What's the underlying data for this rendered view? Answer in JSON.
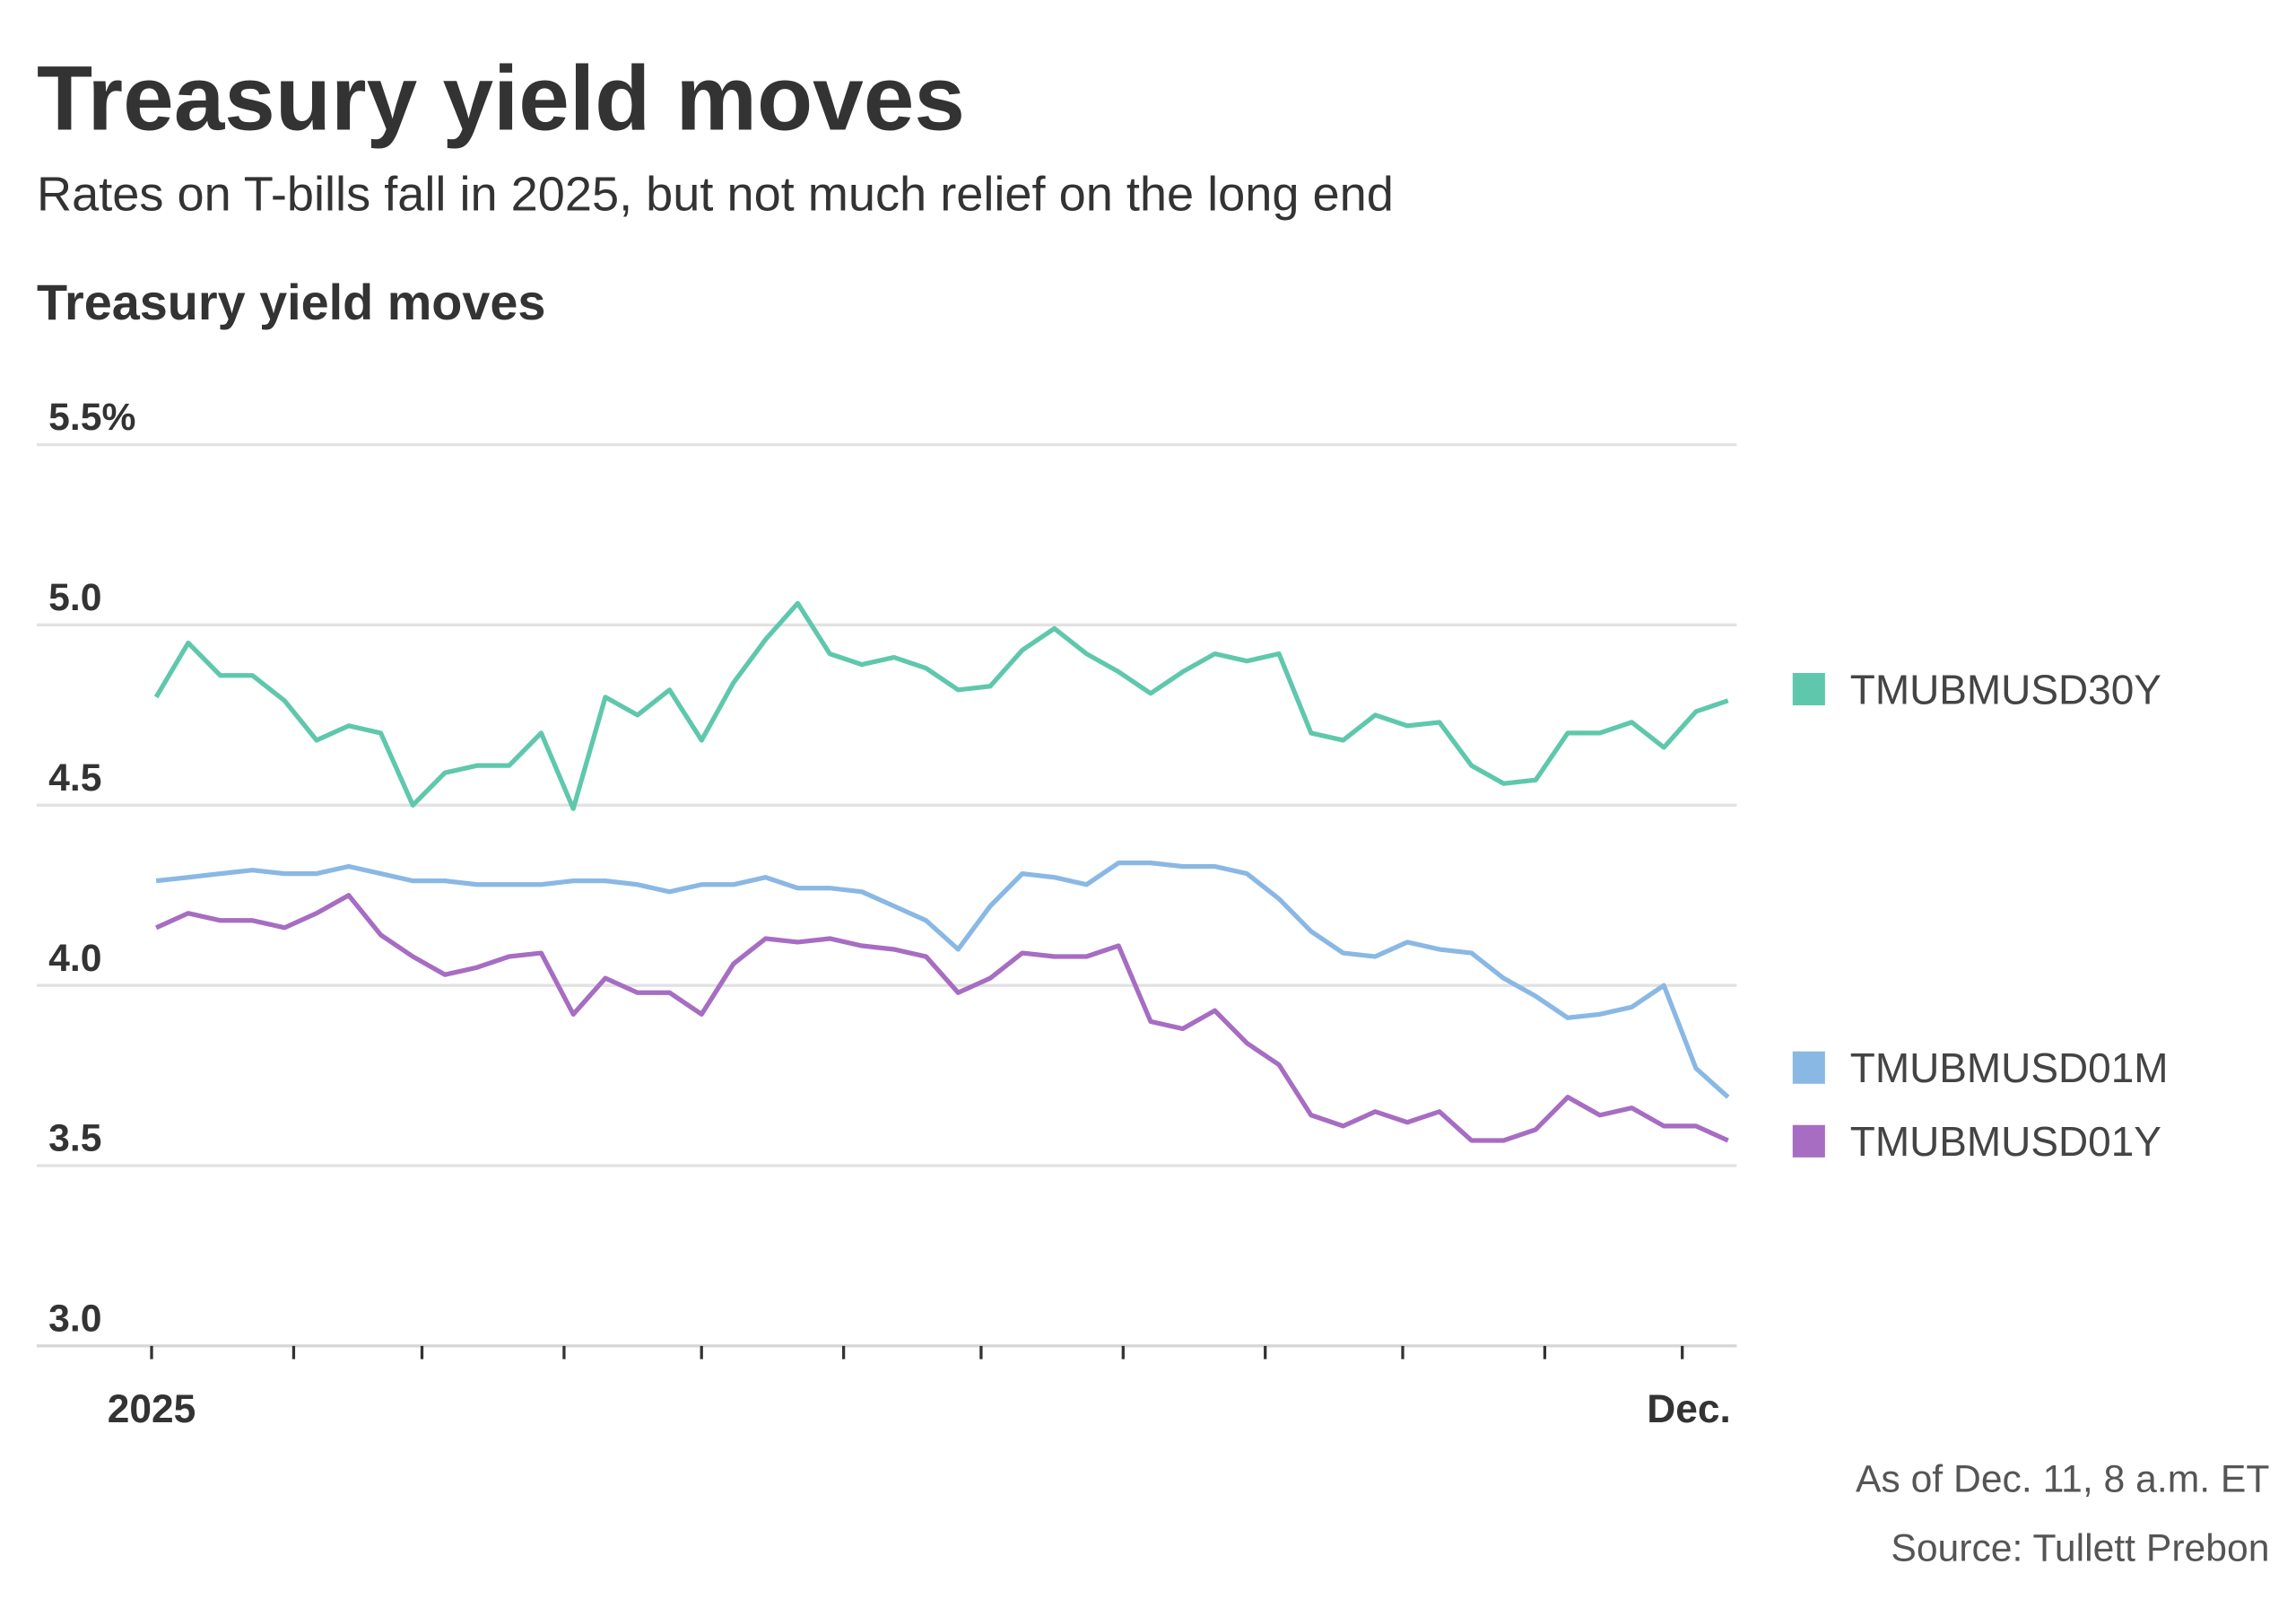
{
  "header": {
    "title": "Treasury yield moves",
    "subtitle": "Rates on T-bills fall in 2025, but not much relief on the long end"
  },
  "footer": {
    "as_of": "As of Dec. 11, 8 a.m. ET",
    "source": "Source: Tullett Prebon"
  },
  "chart_data": {
    "type": "line",
    "title": "Treasury yield moves",
    "xlabel": "",
    "ylabel": "",
    "ylim": [
      3.0,
      5.5
    ],
    "y_ticks": [
      {
        "value": 5.5,
        "label": "5.5%"
      },
      {
        "value": 5.0,
        "label": "5.0"
      },
      {
        "value": 4.5,
        "label": "4.5"
      },
      {
        "value": 4.0,
        "label": "4.0"
      },
      {
        "value": 3.5,
        "label": "3.5"
      },
      {
        "value": 3.0,
        "label": "3.0"
      }
    ],
    "x_ticks": [
      "2025-01-01",
      "2025-02-01",
      "2025-03-01",
      "2025-04-01",
      "2025-05-01",
      "2025-06-01",
      "2025-07-01",
      "2025-08-01",
      "2025-09-01",
      "2025-10-01",
      "2025-11-01",
      "2025-12-01"
    ],
    "x_tick_labels": [
      {
        "date": "2025-01-01",
        "label": "2025"
      },
      {
        "date": "2025-12-01",
        "label": "Dec."
      }
    ],
    "xlim": [
      "2024-12-07",
      "2025-12-12"
    ],
    "grid": true,
    "legend_position": "right",
    "x": [
      "2025-01-02",
      "2025-01-09",
      "2025-01-16",
      "2025-01-23",
      "2025-01-30",
      "2025-02-06",
      "2025-02-13",
      "2025-02-20",
      "2025-02-27",
      "2025-03-06",
      "2025-03-13",
      "2025-03-20",
      "2025-03-27",
      "2025-04-03",
      "2025-04-10",
      "2025-04-17",
      "2025-04-24",
      "2025-05-01",
      "2025-05-08",
      "2025-05-15",
      "2025-05-22",
      "2025-05-29",
      "2025-06-05",
      "2025-06-12",
      "2025-06-19",
      "2025-06-26",
      "2025-07-03",
      "2025-07-10",
      "2025-07-17",
      "2025-07-24",
      "2025-07-31",
      "2025-08-07",
      "2025-08-14",
      "2025-08-21",
      "2025-08-28",
      "2025-09-04",
      "2025-09-11",
      "2025-09-18",
      "2025-09-25",
      "2025-10-02",
      "2025-10-09",
      "2025-10-16",
      "2025-10-23",
      "2025-10-30",
      "2025-11-06",
      "2025-11-13",
      "2025-11-20",
      "2025-11-27",
      "2025-12-04",
      "2025-12-11"
    ],
    "series": [
      {
        "name": "TMUBMUSD30Y",
        "color": "#5fc8ac",
        "values": [
          4.8,
          4.95,
          4.86,
          4.86,
          4.79,
          4.68,
          4.72,
          4.7,
          4.5,
          4.59,
          4.61,
          4.61,
          4.7,
          4.49,
          4.8,
          4.75,
          4.82,
          4.68,
          4.84,
          4.96,
          5.06,
          4.92,
          4.89,
          4.91,
          4.88,
          4.82,
          4.83,
          4.93,
          4.99,
          4.92,
          4.87,
          4.81,
          4.87,
          4.92,
          4.9,
          4.92,
          4.7,
          4.68,
          4.75,
          4.72,
          4.73,
          4.61,
          4.56,
          4.57,
          4.7,
          4.7,
          4.73,
          4.66,
          4.76,
          4.79
        ]
      },
      {
        "name": "TMUBMUSD01M",
        "color": "#8ab8e4",
        "values": [
          4.29,
          4.3,
          4.31,
          4.32,
          4.31,
          4.31,
          4.33,
          4.31,
          4.29,
          4.29,
          4.28,
          4.28,
          4.28,
          4.29,
          4.29,
          4.28,
          4.26,
          4.28,
          4.28,
          4.3,
          4.27,
          4.27,
          4.26,
          4.22,
          4.18,
          4.1,
          4.22,
          4.31,
          4.3,
          4.28,
          4.34,
          4.34,
          4.33,
          4.33,
          4.31,
          4.24,
          4.15,
          4.09,
          4.08,
          4.12,
          4.1,
          4.09,
          4.02,
          3.97,
          3.91,
          3.92,
          3.94,
          4.0,
          3.77,
          3.69
        ]
      },
      {
        "name": "TMUBMUSD01Y",
        "color": "#a66dc2",
        "values": [
          4.16,
          4.2,
          4.18,
          4.18,
          4.16,
          4.2,
          4.25,
          4.14,
          4.08,
          4.03,
          4.05,
          4.08,
          4.09,
          3.92,
          4.02,
          3.98,
          3.98,
          3.92,
          4.06,
          4.13,
          4.12,
          4.13,
          4.11,
          4.1,
          4.08,
          3.98,
          4.02,
          4.09,
          4.08,
          4.08,
          4.11,
          3.9,
          3.88,
          3.93,
          3.84,
          3.78,
          3.64,
          3.61,
          3.65,
          3.62,
          3.65,
          3.57,
          3.57,
          3.6,
          3.69,
          3.64,
          3.66,
          3.61,
          3.61,
          3.57
        ]
      }
    ]
  }
}
